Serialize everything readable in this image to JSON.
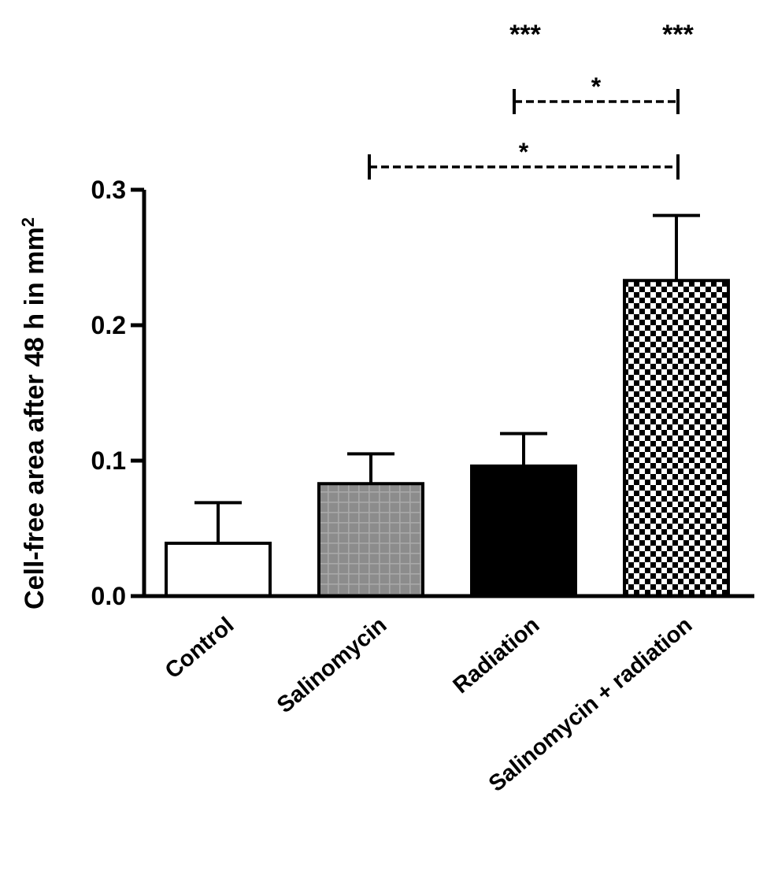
{
  "chart_data": {
    "type": "bar",
    "title": "",
    "xlabel": "",
    "ylabel": "Cell-free area after 48 h in mm",
    "ylabel_superscript": "2",
    "ylim": [
      0.0,
      0.3
    ],
    "yticks": [
      {
        "value": 0.0,
        "label": "0.0"
      },
      {
        "value": 0.1,
        "label": "0.1"
      },
      {
        "value": 0.2,
        "label": "0.2"
      },
      {
        "value": 0.3,
        "label": "0.3"
      }
    ],
    "categories": [
      "Control",
      "Salinomycin",
      "Radiation",
      "Salinomycin + radiation"
    ],
    "values": [
      0.039,
      0.083,
      0.096,
      0.233
    ],
    "error_upper": [
      0.069,
      0.105,
      0.12,
      0.281
    ],
    "fills": [
      "white",
      "grid-gray",
      "black",
      "checker"
    ],
    "significance_above_bars": [
      {
        "category_index": 2,
        "label": "***"
      },
      {
        "category_index": 3,
        "label": "***"
      }
    ],
    "comparison_brackets": [
      {
        "from_index": 2,
        "to_index": 3,
        "label": "*"
      },
      {
        "from_index": 1,
        "to_index": 3,
        "label": "*"
      }
    ],
    "grid": false,
    "legend": "none"
  },
  "colors": {
    "axis": "#000000",
    "white_bar": "#ffffff",
    "black_bar": "#000000",
    "gray_bar": "#8c8c8c",
    "gray_grid_line": "#a8a8a8"
  }
}
